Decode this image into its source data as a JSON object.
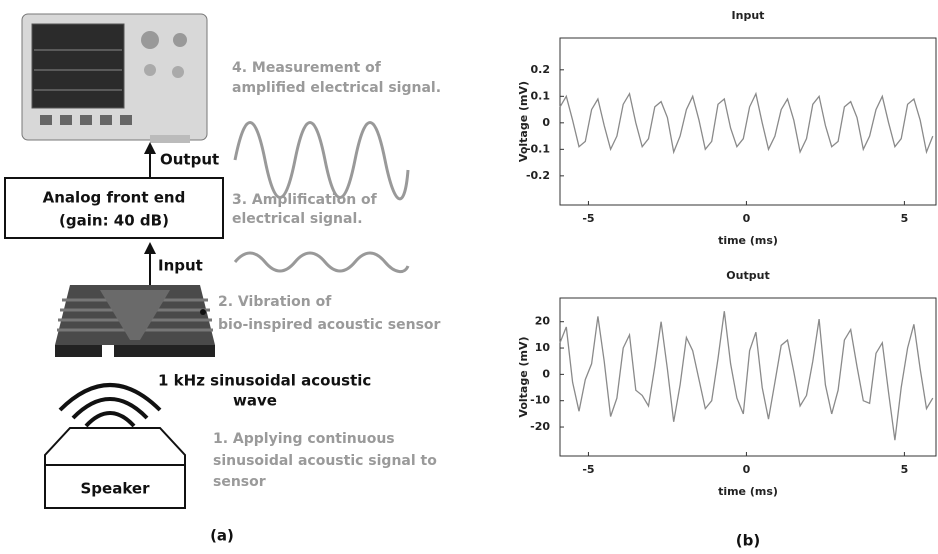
{
  "diagram": {
    "step4": [
      "4. Measurement of",
      "amplified electrical signal."
    ],
    "output_label": "Output",
    "front_end": [
      "Analog front end",
      "(gain: 40 dB)"
    ],
    "step3": [
      "3. Amplification of",
      "electrical signal."
    ],
    "input_label": "Input",
    "step2": [
      "2. Vibration of",
      "bio-inspired acoustic sensor"
    ],
    "wave_label": [
      "1 kHz sinusoidal acoustic",
      "wave"
    ],
    "step1": [
      "1. Applying continuous",
      "sinusoidal acoustic signal to",
      "sensor"
    ],
    "speaker": "Speaker",
    "panel_a": "(a)",
    "panel_b": "(b)"
  },
  "chart_data": [
    {
      "type": "line",
      "title": "Input",
      "x_label": "time (ms)",
      "y_label": "Voltage (mV)",
      "xlim": [
        -5.9,
        6.0
      ],
      "ylim": [
        -0.31,
        0.32
      ],
      "xticks": [
        -5,
        0,
        5
      ],
      "yticks": [
        0.2,
        0.1,
        0,
        -0.1,
        -0.2
      ],
      "series": [
        {
          "color": "#8a8a8a",
          "x": [
            -5.9,
            -5.7,
            -5.5,
            -5.3,
            -5.1,
            -4.9,
            -4.7,
            -4.5,
            -4.3,
            -4.1,
            -3.9,
            -3.7,
            -3.5,
            -3.3,
            -3.1,
            -2.9,
            -2.7,
            -2.5,
            -2.3,
            -2.1,
            -1.9,
            -1.7,
            -1.5,
            -1.3,
            -1.1,
            -0.9,
            -0.7,
            -0.5,
            -0.3,
            -0.1,
            0.1,
            0.3,
            0.5,
            0.7,
            0.9,
            1.1,
            1.3,
            1.5,
            1.7,
            1.9,
            2.1,
            2.3,
            2.5,
            2.7,
            2.9,
            3.1,
            3.3,
            3.5,
            3.7,
            3.9,
            4.1,
            4.3,
            4.5,
            4.7,
            4.9,
            5.1,
            5.3,
            5.5,
            5.7,
            5.9
          ],
          "values": [
            0.06,
            0.1,
            0.01,
            -0.09,
            -0.07,
            0.05,
            0.09,
            -0.01,
            -0.1,
            -0.05,
            0.07,
            0.11,
            0.0,
            -0.09,
            -0.06,
            0.06,
            0.08,
            0.02,
            -0.11,
            -0.05,
            0.05,
            0.1,
            0.01,
            -0.1,
            -0.07,
            0.07,
            0.09,
            -0.02,
            -0.09,
            -0.06,
            0.06,
            0.11,
            0.0,
            -0.1,
            -0.05,
            0.05,
            0.09,
            0.01,
            -0.11,
            -0.06,
            0.07,
            0.1,
            -0.01,
            -0.09,
            -0.07,
            0.06,
            0.08,
            0.02,
            -0.1,
            -0.05,
            0.05,
            0.1,
            0.0,
            -0.09,
            -0.06,
            0.07,
            0.09,
            0.01,
            -0.11,
            -0.05
          ]
        }
      ]
    },
    {
      "type": "line",
      "title": "Output",
      "x_label": "time (ms)",
      "y_label": "Voltage (mV)",
      "xlim": [
        -5.9,
        6.0
      ],
      "ylim": [
        -31,
        29
      ],
      "xticks": [
        -5,
        0,
        5
      ],
      "yticks": [
        20,
        10,
        0,
        -10,
        -20
      ],
      "series": [
        {
          "color": "#8a8a8a",
          "x": [
            -5.9,
            -5.7,
            -5.5,
            -5.3,
            -5.1,
            -4.9,
            -4.7,
            -4.5,
            -4.3,
            -4.1,
            -3.9,
            -3.7,
            -3.5,
            -3.3,
            -3.1,
            -2.9,
            -2.7,
            -2.5,
            -2.3,
            -2.1,
            -1.9,
            -1.7,
            -1.5,
            -1.3,
            -1.1,
            -0.9,
            -0.7,
            -0.5,
            -0.3,
            -0.1,
            0.1,
            0.3,
            0.5,
            0.7,
            0.9,
            1.1,
            1.3,
            1.5,
            1.7,
            1.9,
            2.1,
            2.3,
            2.5,
            2.7,
            2.9,
            3.1,
            3.3,
            3.5,
            3.7,
            3.9,
            4.1,
            4.3,
            4.5,
            4.7,
            4.9,
            5.1,
            5.3,
            5.5,
            5.7,
            5.9
          ],
          "values": [
            12,
            18,
            -3,
            -14,
            -2,
            4,
            22,
            5,
            -16,
            -9,
            10,
            15,
            -6,
            -8,
            -12,
            3,
            20,
            2,
            -18,
            -4,
            14,
            9,
            -2,
            -13,
            -10,
            6,
            24,
            4,
            -9,
            -15,
            9,
            16,
            -5,
            -17,
            -3,
            11,
            13,
            1,
            -12,
            -8,
            5,
            21,
            -4,
            -15,
            -6,
            13,
            17,
            3,
            -10,
            -11,
            8,
            12,
            -7,
            -25,
            -5,
            10,
            19,
            2,
            -13,
            -9
          ]
        }
      ]
    }
  ]
}
